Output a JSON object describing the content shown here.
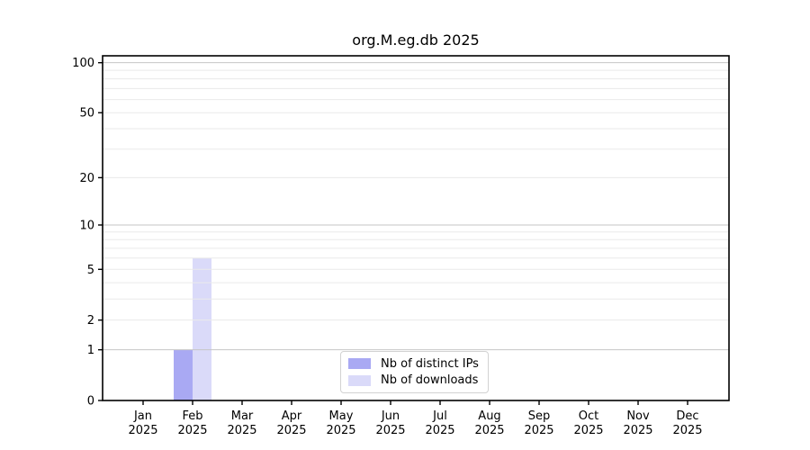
{
  "chart_data": {
    "type": "bar",
    "title": "org.M.eg.db 2025",
    "categories": [
      "Jan 2025",
      "Feb 2025",
      "Mar 2025",
      "Apr 2025",
      "May 2025",
      "Jun 2025",
      "Jul 2025",
      "Aug 2025",
      "Sep 2025",
      "Oct 2025",
      "Nov 2025",
      "Dec 2025"
    ],
    "series": [
      {
        "name": "Nb of distinct IPs",
        "color": "#a9a9f3",
        "values": [
          0,
          1,
          0,
          0,
          0,
          0,
          0,
          0,
          0,
          0,
          0,
          0
        ]
      },
      {
        "name": "Nb of downloads",
        "color": "#dadaf9",
        "values": [
          0,
          6,
          0,
          0,
          0,
          0,
          0,
          0,
          0,
          0,
          0,
          0
        ]
      }
    ],
    "yscale": "log1p",
    "ylim": [
      0,
      110
    ],
    "y_ticks": [
      0,
      1,
      2,
      5,
      10,
      20,
      50,
      100
    ],
    "y_major_gridlines": [
      1,
      10,
      100
    ],
    "y_minor_gridlines": [
      2,
      3,
      4,
      5,
      6,
      7,
      8,
      9,
      20,
      30,
      40,
      50,
      60,
      70,
      80,
      90
    ],
    "grid": "horizontal, drawn over bars",
    "legend_position": "lower center inside plot",
    "colors": {
      "major_grid": "#c6c6c6",
      "minor_grid": "#eaeaea",
      "axis": "#000000",
      "text": "#000000",
      "background": "#ffffff"
    }
  }
}
